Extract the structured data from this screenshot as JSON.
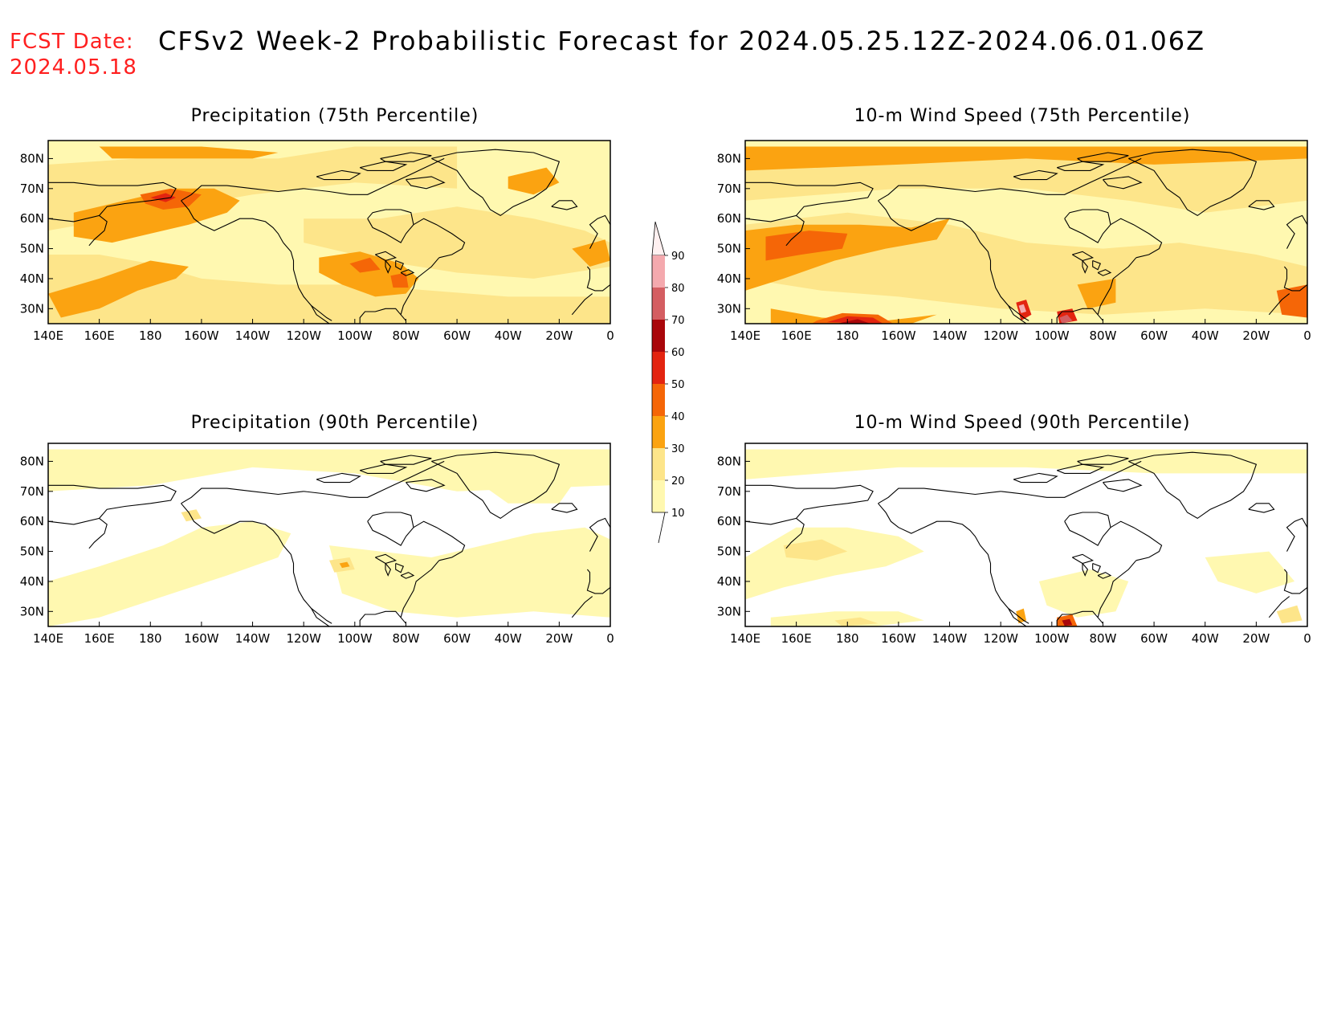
{
  "fcst": {
    "label": "FCST Date:",
    "date": "2024.05.18"
  },
  "title": "CFSv2 Week-2 Probabilistic Forecast for 2024.05.25.12Z-2024.06.01.06Z",
  "axes": {
    "lon_ticks": [
      "140E",
      "160E",
      "180",
      "160W",
      "140W",
      "120W",
      "100W",
      "80W",
      "60W",
      "40W",
      "20W",
      "0"
    ],
    "lat_ticks": [
      "80N",
      "70N",
      "60N",
      "50N",
      "40N",
      "30N"
    ]
  },
  "colorbar": {
    "levels": [
      "90",
      "80",
      "70",
      "60",
      "50",
      "40",
      "30",
      "20",
      "10"
    ],
    "colors": {
      "10-20": "#fff8b0",
      "20-30": "#fde58a",
      "30-40": "#fba311",
      "40-50": "#f56607",
      "50-60": "#e32410",
      "60-70": "#a9070b",
      "70-80": "#d45e62",
      "80-90": "#f4a9ae",
      "90+": "#fff0f0"
    }
  },
  "panels": [
    {
      "title": "Precipitation (75th Percentile)"
    },
    {
      "title": "10-m Wind Speed (75th Percentile)"
    },
    {
      "title": "Precipitation (90th Percentile)"
    },
    {
      "title": "10-m Wind Speed (90th Percentile)"
    }
  ]
}
